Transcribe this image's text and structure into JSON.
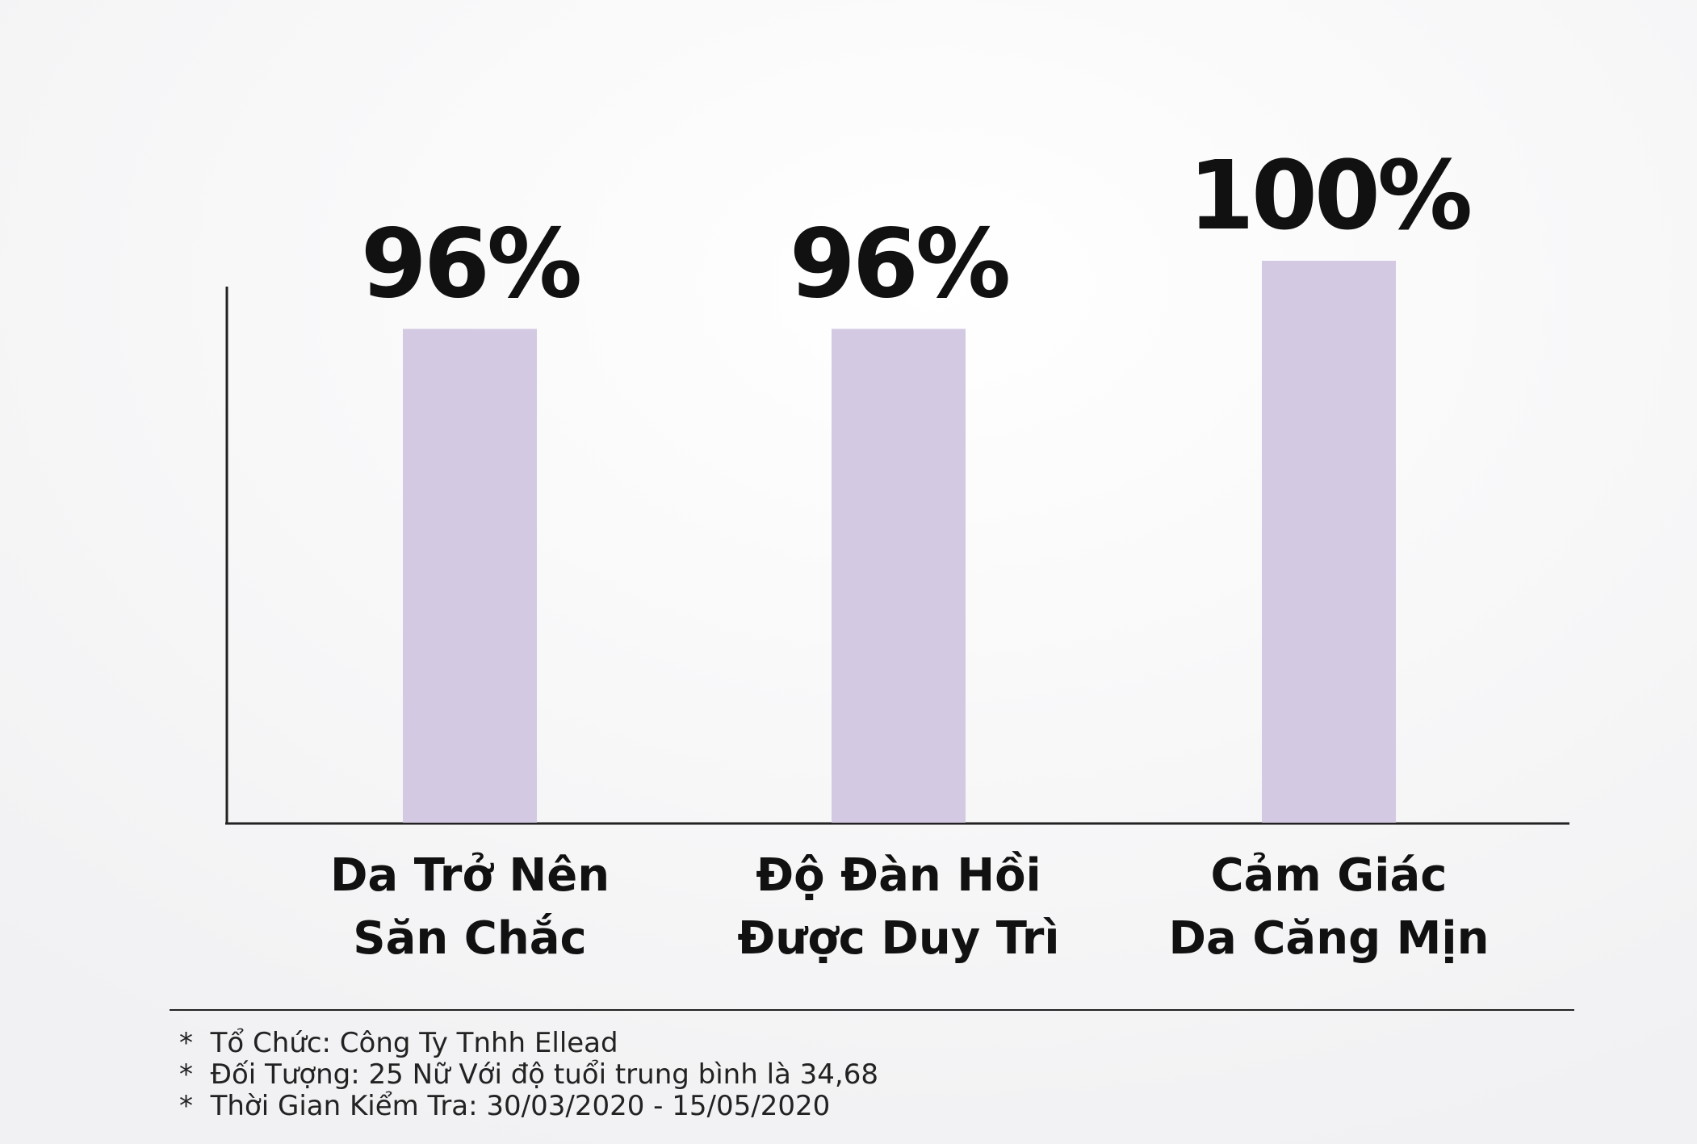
{
  "chart_data": {
    "type": "bar",
    "categories": [
      [
        "Da Trở Nên",
        "Săn Chắc"
      ],
      [
        "Độ Đàn Hồi",
        "Được Duy Trì"
      ],
      [
        "Cảm Giác",
        "Da Căng Mịn"
      ]
    ],
    "values": [
      96,
      96,
      100
    ],
    "value_labels": [
      "96%",
      "96%",
      "100%"
    ],
    "color": "#d4c9e2",
    "ylim": [
      67,
      100
    ],
    "footnotes": [
      "*  Tổ Chức: Công Ty Tnhh Ellead",
      "*  Đối Tượng: 25 Nữ Với độ tuổi trung bình là 34,68",
      "*  Thời Gian Kiểm Tra: 30/03/2020 - 15/05/2020"
    ]
  }
}
